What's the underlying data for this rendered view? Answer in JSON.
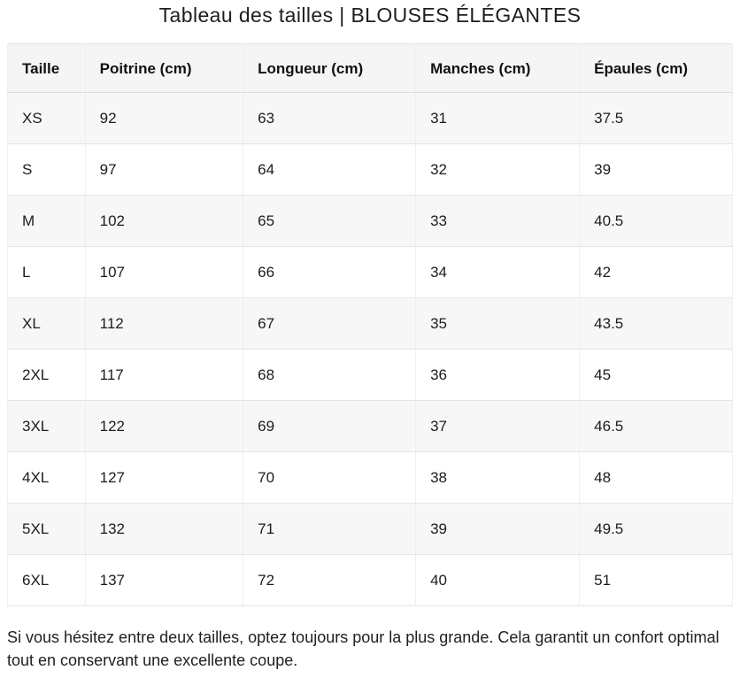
{
  "page": {
    "title": "Tableau des tailles | BLOUSES ÉLÉGANTES",
    "note": "Si vous hésitez entre deux tailles, optez toujours pour la plus grande. Cela garantit un confort optimal tout en conservant une excellente coupe."
  },
  "size_chart": {
    "columns": [
      "Taille",
      "Poitrine (cm)",
      "Longueur (cm)",
      "Manches (cm)",
      "Épaules (cm)"
    ],
    "rows": [
      [
        "XS",
        "92",
        "63",
        "31",
        "37.5"
      ],
      [
        "S",
        "97",
        "64",
        "32",
        "39"
      ],
      [
        "M",
        "102",
        "65",
        "33",
        "40.5"
      ],
      [
        "L",
        "107",
        "66",
        "34",
        "42"
      ],
      [
        "XL",
        "112",
        "67",
        "35",
        "43.5"
      ],
      [
        "2XL",
        "117",
        "68",
        "36",
        "45"
      ],
      [
        "3XL",
        "122",
        "69",
        "37",
        "46.5"
      ],
      [
        "4XL",
        "127",
        "70",
        "38",
        "48"
      ],
      [
        "5XL",
        "132",
        "71",
        "39",
        "49.5"
      ],
      [
        "6XL",
        "137",
        "72",
        "40",
        "51"
      ]
    ]
  },
  "colors": {
    "header_background": "#f5f5f5",
    "odd_row_background": "#f7f7f7",
    "even_row_background": "#ffffff",
    "row_border": "#e5e5e5",
    "text": "#1c1c1c"
  }
}
